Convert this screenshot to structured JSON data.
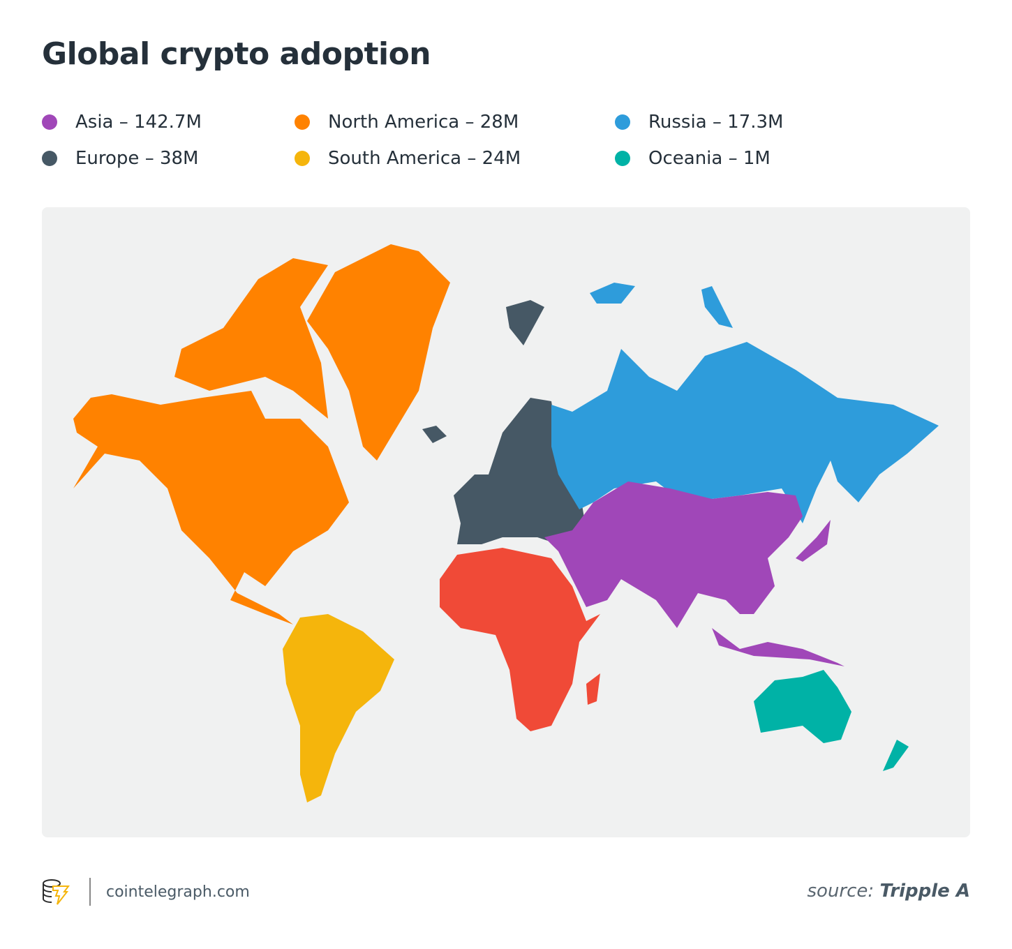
{
  "title": "Global crypto adoption",
  "legend": [
    {
      "label": "Asia – 142.7M",
      "color": "#a047b8"
    },
    {
      "label": "Europe – 38M",
      "color": "#465865"
    },
    {
      "label": "North America – 28M",
      "color": "#ff8200"
    },
    {
      "label": "South America – 24M",
      "color": "#f5b50c"
    },
    {
      "label": "Russia – 17.3M",
      "color": "#2e9cdb"
    },
    {
      "label": "Oceania – 1M",
      "color": "#00b2a6"
    }
  ],
  "map": {
    "background": "#f0f1f1",
    "regions": {
      "north_america": "#ff8200",
      "south_america": "#f5b50c",
      "europe": "#465865",
      "russia": "#2e9cdb",
      "asia": "#a047b8",
      "africa": "#f04a37",
      "oceania": "#00b2a6"
    }
  },
  "footer": {
    "brand": "cointelegraph.com",
    "logo_icon": "cointelegraph-logo-icon",
    "source_prefix": "source:",
    "source_name": "Tripple A"
  }
}
